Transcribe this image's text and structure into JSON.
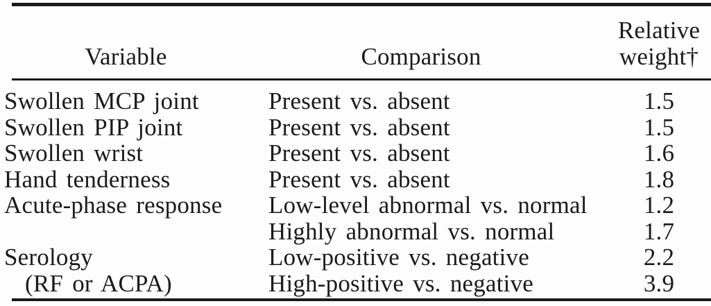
{
  "table": {
    "columns": [
      {
        "label": "Variable"
      },
      {
        "label": "Comparison"
      },
      {
        "label_line1": "Relative",
        "label_line2": "weight†"
      }
    ],
    "rows": [
      {
        "variable": "Swollen MCP joint",
        "comparison": "Present vs. absent",
        "weight": "1.5"
      },
      {
        "variable": "Swollen PIP joint",
        "comparison": "Present vs. absent",
        "weight": "1.5"
      },
      {
        "variable": "Swollen wrist",
        "comparison": "Present vs. absent",
        "weight": "1.6"
      },
      {
        "variable": "Hand tenderness",
        "comparison": "Present vs. absent",
        "weight": "1.8"
      },
      {
        "variable": "Acute-phase response",
        "comparison": "Low-level abnormal vs. normal",
        "weight": "1.2"
      },
      {
        "variable": "",
        "comparison": "Highly abnormal vs. normal",
        "weight": "1.7"
      },
      {
        "variable": "Serology",
        "comparison": "Low-positive vs. negative",
        "weight": "2.2"
      },
      {
        "variable": "(RF or ACPA)",
        "comparison": "High-positive vs. negative",
        "weight": "3.9"
      }
    ]
  },
  "colors": {
    "ink": "#1b1b1b",
    "background": "#fdfdfd"
  }
}
